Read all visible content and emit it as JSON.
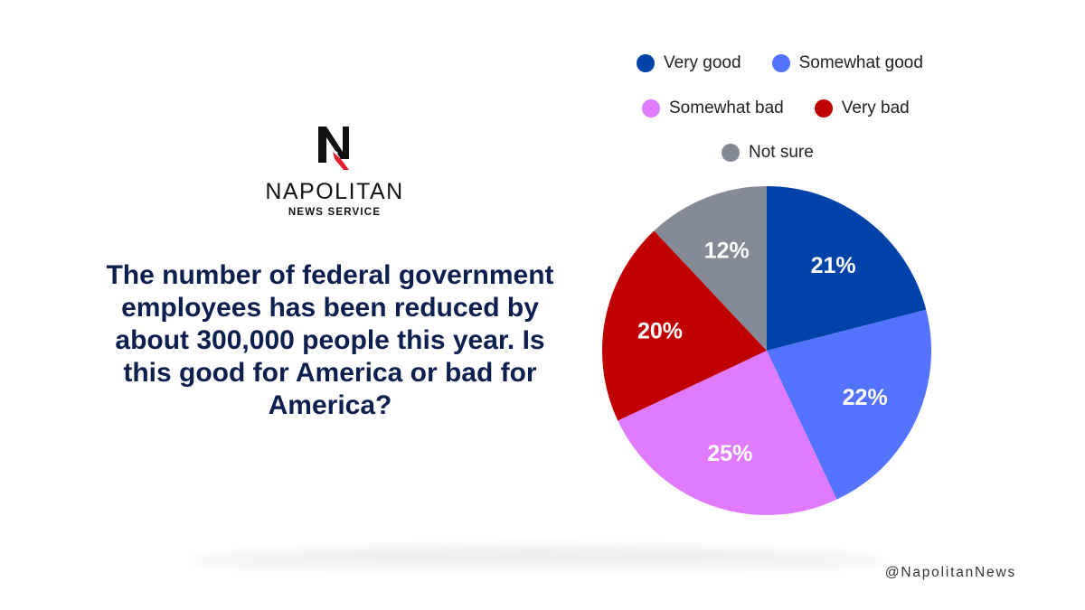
{
  "brand": {
    "name": "NAPOLITAN",
    "subtitle": "NEWS SERVICE",
    "handle": "@NapolitanNews"
  },
  "question": "The number of federal government employees has been reduced by about 300,000 people this year. Is this good for America or bad for America?",
  "colors": {
    "very_good": "#0043a8",
    "somewhat_good": "#5373ff",
    "somewhat_bad": "#e07bff",
    "very_bad": "#c00000",
    "not_sure": "#848a96",
    "title": "#0d1f4e"
  },
  "chart_data": {
    "type": "pie",
    "title": "",
    "legend_position": "top",
    "slices": [
      {
        "label": "Very good",
        "value": 21,
        "display": "21%",
        "color": "#0043a8"
      },
      {
        "label": "Somewhat good",
        "value": 22,
        "display": "22%",
        "color": "#5373ff"
      },
      {
        "label": "Somewhat bad",
        "value": 25,
        "display": "25%",
        "color": "#e07bff"
      },
      {
        "label": "Very bad",
        "value": 20,
        "display": "20%",
        "color": "#c00000"
      },
      {
        "label": "Not sure",
        "value": 12,
        "display": "12%",
        "color": "#848a96"
      }
    ]
  }
}
